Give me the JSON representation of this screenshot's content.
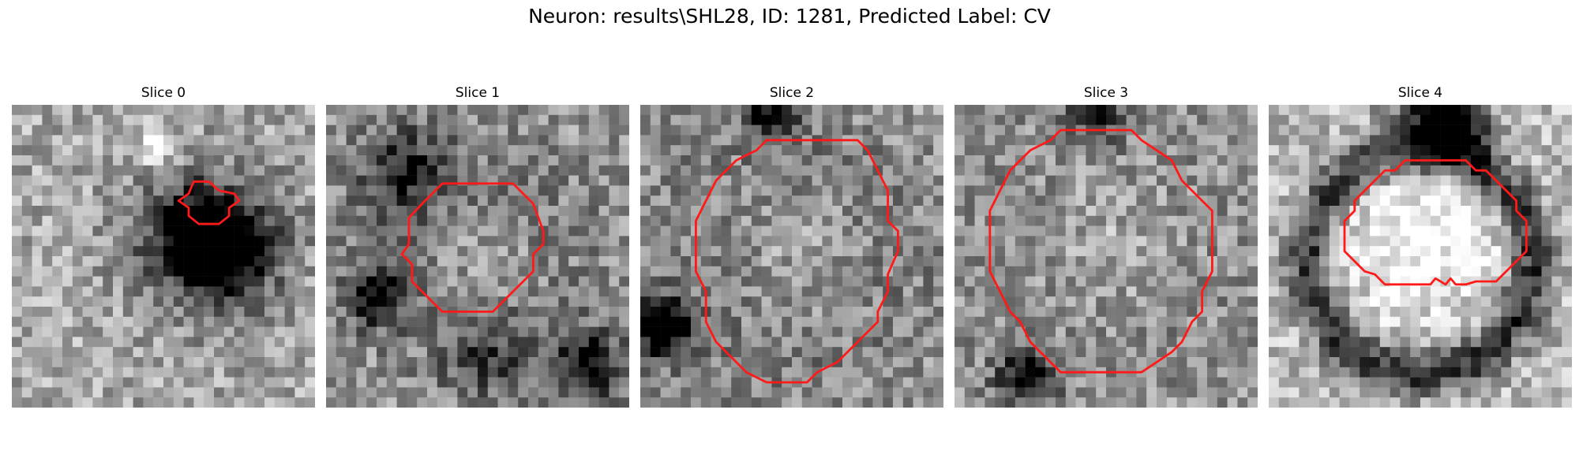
{
  "figure": {
    "title": "Neuron: results\\SHL28, ID: 1281, Predicted Label: CV",
    "contour_color": "#ff1a1a"
  },
  "panels": [
    {
      "title": "Slice 0",
      "contour": [
        [
          18,
          7.6
        ],
        [
          19.5,
          7.6
        ],
        [
          20.5,
          8.5
        ],
        [
          22,
          8.8
        ],
        [
          22.5,
          9.5
        ],
        [
          21.5,
          10.2
        ],
        [
          21.5,
          11
        ],
        [
          20.5,
          11.8
        ],
        [
          18.5,
          11.8
        ],
        [
          17.5,
          11
        ],
        [
          17.5,
          10.2
        ],
        [
          16.5,
          9.5
        ],
        [
          17.5,
          8.8
        ]
      ],
      "dark_spots": [
        [
          19.5,
          13.5,
          5,
          0.5
        ],
        [
          21,
          14.5,
          3,
          0.6
        ],
        [
          18,
          12.5,
          3,
          0.3
        ]
      ],
      "bright_spots": [
        [
          14.5,
          4,
          1.2,
          0.5
        ]
      ],
      "base": 0.66,
      "seed": 11
    },
    {
      "title": "Slice 1",
      "contour": [
        [
          11.5,
          7.8
        ],
        [
          18.5,
          7.8
        ],
        [
          20.5,
          9.8
        ],
        [
          21.5,
          12.5
        ],
        [
          21.5,
          13.8
        ],
        [
          20.5,
          14.8
        ],
        [
          20.5,
          16.5
        ],
        [
          18.5,
          18.5
        ],
        [
          16.5,
          20.5
        ],
        [
          11.5,
          20.5
        ],
        [
          9.5,
          18.5
        ],
        [
          8.5,
          17.5
        ],
        [
          8.5,
          15.8
        ],
        [
          7.5,
          14.8
        ],
        [
          8.2,
          13.8
        ],
        [
          8.2,
          11.2
        ],
        [
          9.5,
          9.8
        ]
      ],
      "dark_spots": [
        [
          14.5,
          14.5,
          8,
          0.35
        ],
        [
          7.5,
          6.5,
          3,
          0.4
        ],
        [
          5,
          19,
          2,
          0.6
        ],
        [
          26,
          26,
          2.5,
          0.6
        ],
        [
          16,
          25,
          3,
          0.3
        ]
      ],
      "bright_spots": [
        [
          15,
          15,
          5,
          0.35
        ]
      ],
      "base": 0.62,
      "seed": 23
    },
    {
      "title": "Slice 2",
      "contour": [
        [
          13.5,
          3.5
        ],
        [
          21.5,
          3.5
        ],
        [
          22.5,
          4.5
        ],
        [
          23.5,
          6.5
        ],
        [
          24.5,
          8.5
        ],
        [
          24.5,
          11.5
        ],
        [
          25.5,
          12.5
        ],
        [
          25.5,
          14.5
        ],
        [
          24.5,
          16.8
        ],
        [
          24.5,
          18.5
        ],
        [
          23.5,
          20.5
        ],
        [
          23.5,
          21.5
        ],
        [
          22.5,
          22.5
        ],
        [
          20.5,
          24.5
        ],
        [
          19.5,
          25.5
        ],
        [
          17.5,
          26.5
        ],
        [
          16.5,
          27.5
        ],
        [
          12.5,
          27.5
        ],
        [
          10.5,
          26.5
        ],
        [
          9.5,
          25.5
        ],
        [
          7.5,
          23.5
        ],
        [
          6.5,
          21.5
        ],
        [
          6.5,
          18.5
        ],
        [
          5.5,
          16.5
        ],
        [
          5.5,
          11.5
        ],
        [
          6.5,
          9.5
        ],
        [
          7.5,
          7.5
        ],
        [
          9.5,
          5.5
        ],
        [
          11.5,
          4.5
        ],
        [
          12.5,
          3.5
        ]
      ],
      "dark_spots": [
        [
          14.5,
          15.5,
          10,
          0.3
        ],
        [
          2,
          22,
          2,
          0.8
        ],
        [
          13,
          1,
          2,
          0.5
        ]
      ],
      "bright_spots": [
        [
          15,
          15,
          6,
          0.3
        ]
      ],
      "base": 0.62,
      "seed": 37
    },
    {
      "title": "Slice 3",
      "contour": [
        [
          12,
          2.5
        ],
        [
          17.5,
          2.5
        ],
        [
          18.5,
          3.5
        ],
        [
          20,
          4.5
        ],
        [
          21.5,
          5.5
        ],
        [
          22.5,
          7.5
        ],
        [
          24.5,
          9.5
        ],
        [
          25.5,
          10.5
        ],
        [
          25.5,
          16.5
        ],
        [
          24.5,
          18.5
        ],
        [
          24.5,
          20.5
        ],
        [
          23.5,
          21.5
        ],
        [
          22.5,
          23.5
        ],
        [
          21.5,
          24.5
        ],
        [
          20,
          25.5
        ],
        [
          18.5,
          26.5
        ],
        [
          10.5,
          26.5
        ],
        [
          9.5,
          25.5
        ],
        [
          8.5,
          24.5
        ],
        [
          7.5,
          23.5
        ],
        [
          6.5,
          21.5
        ],
        [
          5.5,
          20.5
        ],
        [
          4.5,
          18.5
        ],
        [
          3.5,
          16.5
        ],
        [
          3.5,
          10.5
        ],
        [
          4.5,
          8.5
        ],
        [
          5.5,
          6.5
        ],
        [
          6.5,
          5.5
        ],
        [
          7.5,
          4.5
        ],
        [
          9.5,
          3.5
        ],
        [
          10.5,
          2.5
        ]
      ],
      "dark_spots": [
        [
          14.5,
          14.5,
          13,
          0.2
        ],
        [
          7,
          27,
          2,
          0.6
        ],
        [
          14,
          1,
          2,
          0.4
        ]
      ],
      "bright_spots": [
        [
          15,
          14,
          6,
          0.2
        ]
      ],
      "base": 0.66,
      "seed": 53
    },
    {
      "title": "Slice 4",
      "contour": [
        [
          13.5,
          5.5
        ],
        [
          19.5,
          5.5
        ],
        [
          20.5,
          6.5
        ],
        [
          21.5,
          6.5
        ],
        [
          22.5,
          7.5
        ],
        [
          23.5,
          8.5
        ],
        [
          24.5,
          9.5
        ],
        [
          24.5,
          10.5
        ],
        [
          25.5,
          11.5
        ],
        [
          25.5,
          14.5
        ],
        [
          24.5,
          15.5
        ],
        [
          23.5,
          16.5
        ],
        [
          22.5,
          17.5
        ],
        [
          20.5,
          17.5
        ],
        [
          19.5,
          17.8
        ],
        [
          18.5,
          17.8
        ],
        [
          18,
          17.2
        ],
        [
          17.5,
          17.8
        ],
        [
          16.5,
          17.2
        ],
        [
          16,
          17.8
        ],
        [
          11.5,
          17.8
        ],
        [
          10.5,
          16.8
        ],
        [
          9.5,
          16.5
        ],
        [
          7.5,
          14.5
        ],
        [
          7.5,
          11.5
        ],
        [
          8.5,
          10.5
        ],
        [
          8.5,
          9.5
        ],
        [
          10.5,
          7.5
        ],
        [
          11.5,
          6.5
        ],
        [
          12.5,
          6.5
        ]
      ],
      "dark_spots": [
        [
          16.5,
          1,
          3,
          0.7
        ],
        [
          19,
          2.5,
          2,
          0.5
        ]
      ],
      "ring": [
        15,
        15.5,
        11,
        1.6,
        0.55
      ],
      "bright_spots": [
        [
          15,
          13,
          6,
          0.3
        ]
      ],
      "base": 0.72,
      "seed": 71
    }
  ]
}
